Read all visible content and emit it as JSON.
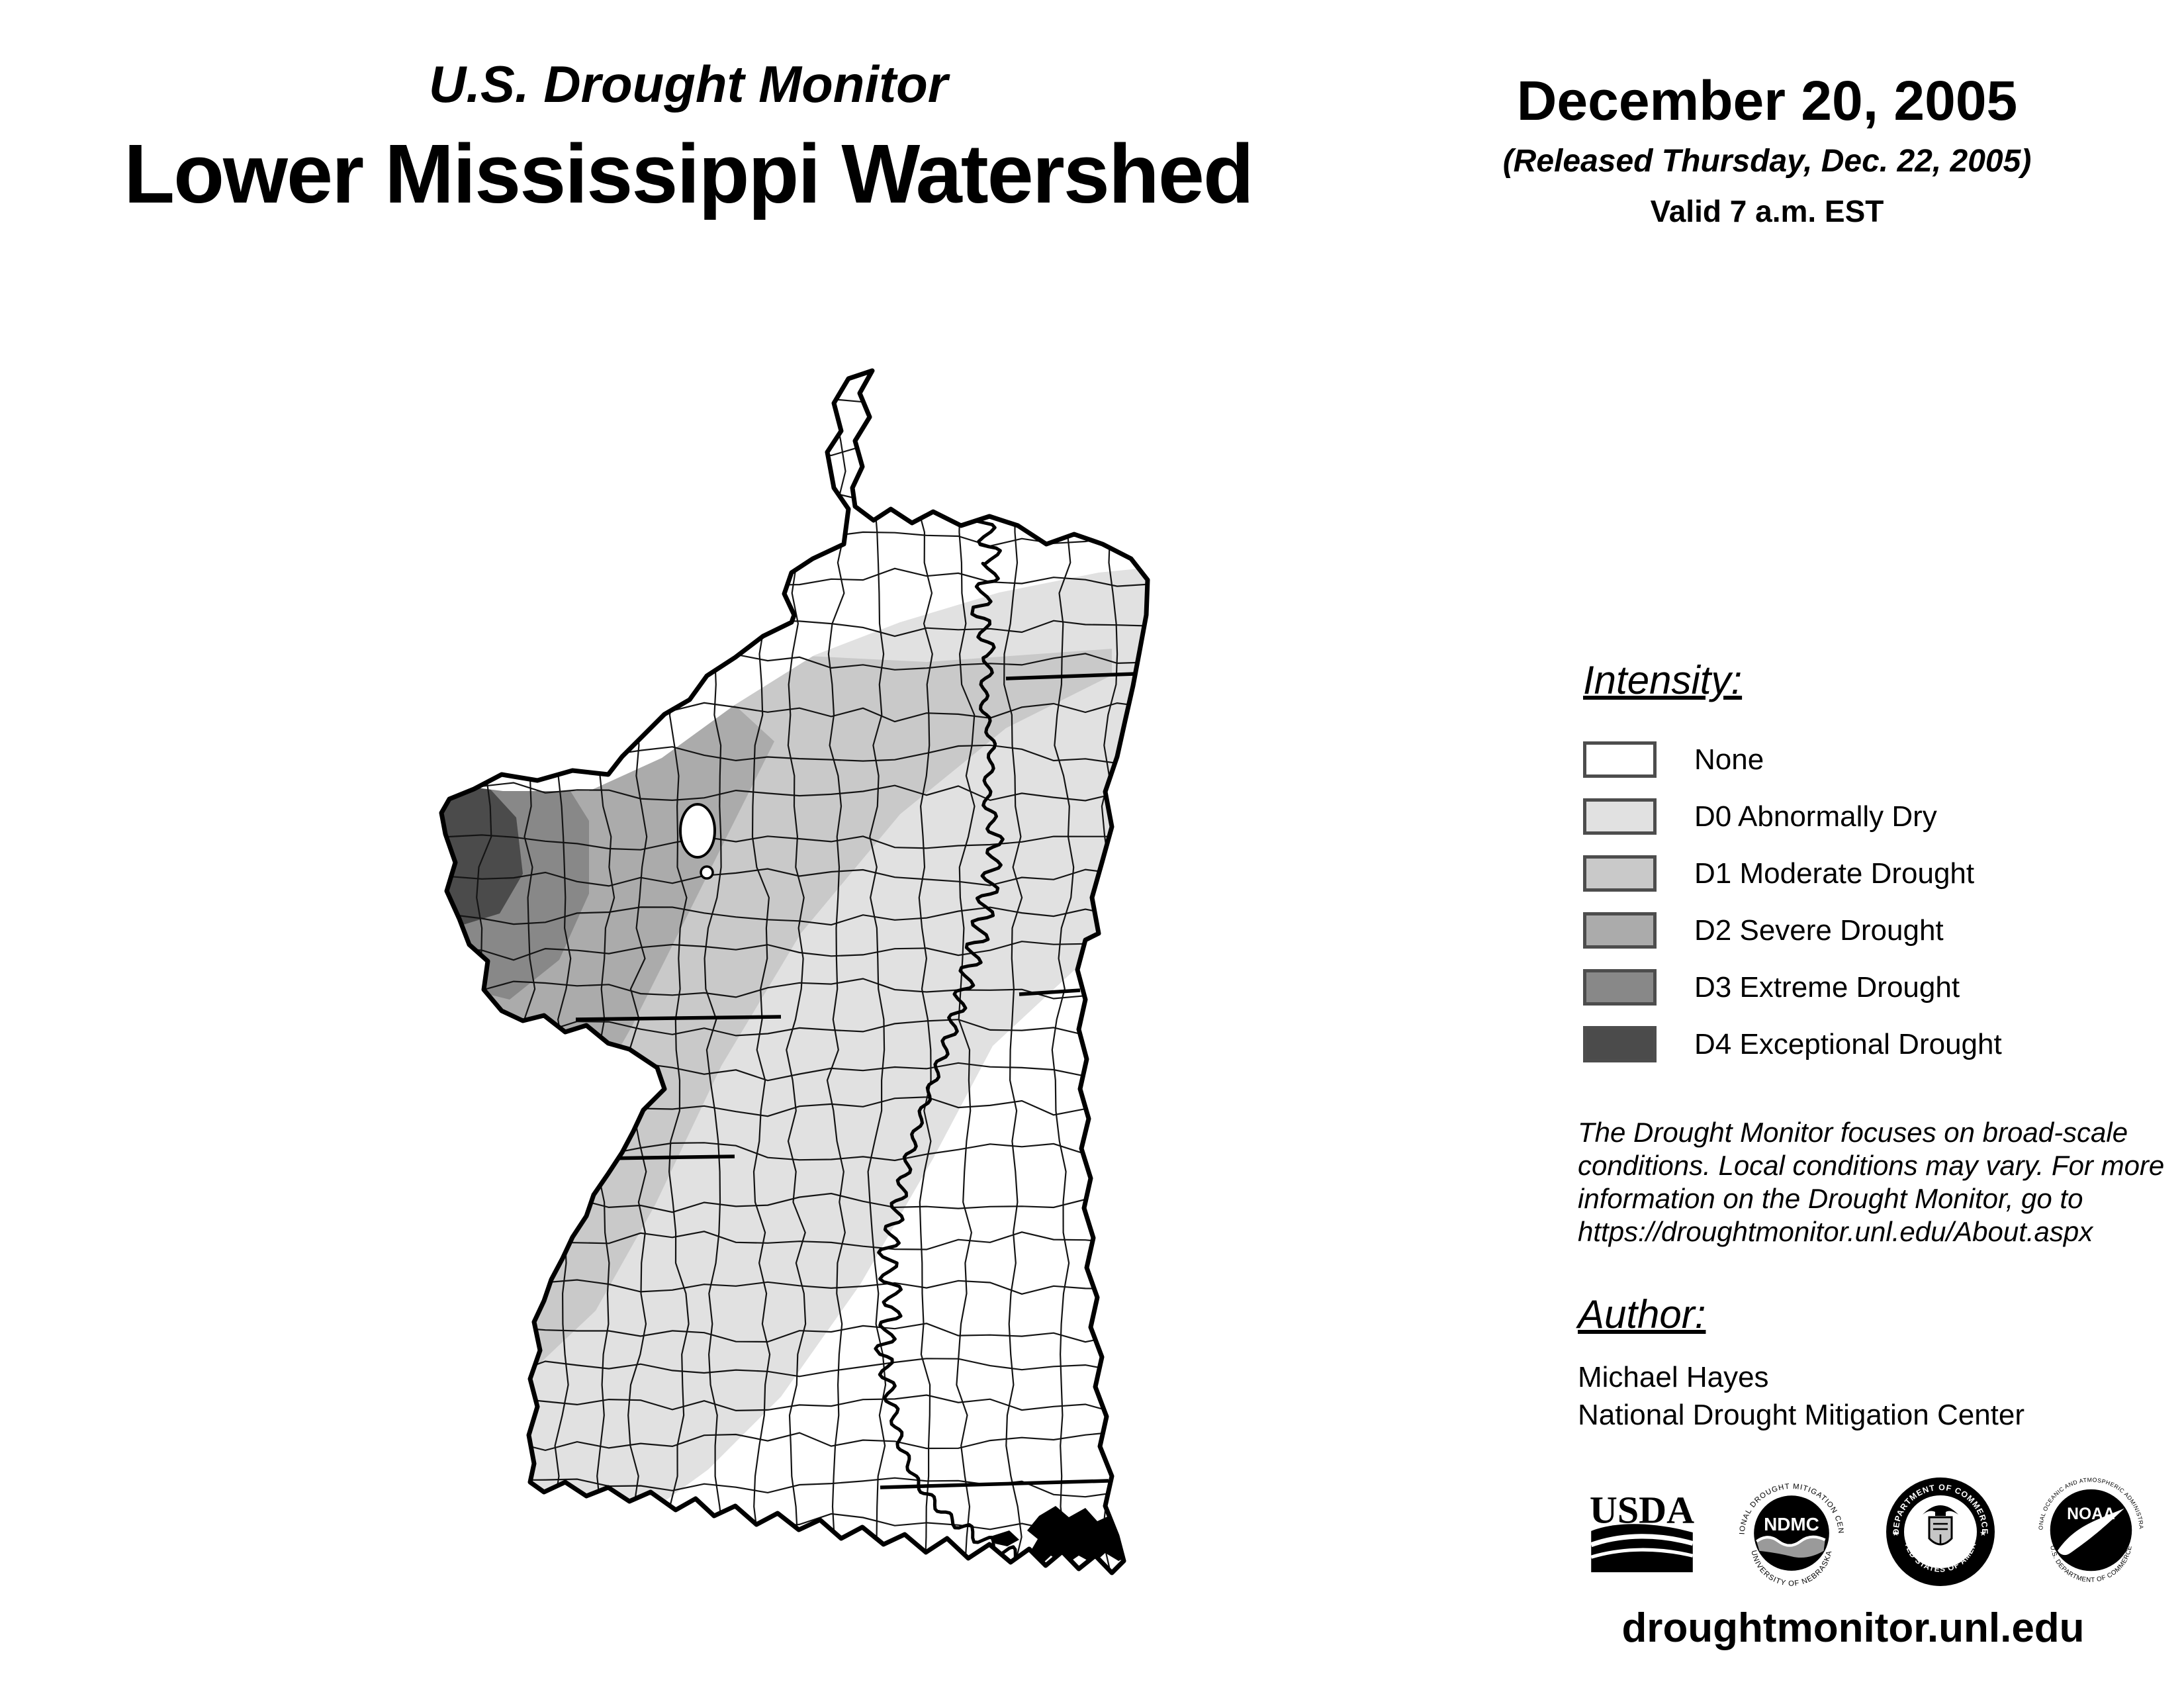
{
  "header": {
    "program_title": "U.S. Drought Monitor",
    "map_title": "Lower Mississippi Watershed"
  },
  "release": {
    "map_date": "December 20, 2005",
    "released_line": "(Released Thursday, Dec. 22, 2005)",
    "valid_line": "Valid 7 a.m. EST"
  },
  "legend": {
    "heading": "Intensity:",
    "swatch_border_color": "#4D4D4D",
    "items": [
      {
        "label": "None",
        "color": "#FFFFFF"
      },
      {
        "label": "D0 Abnormally Dry",
        "color": "#E1E1E1"
      },
      {
        "label": "D1 Moderate Drought",
        "color": "#C9C9C9"
      },
      {
        "label": "D2 Severe Drought",
        "color": "#ABABAB"
      },
      {
        "label": "D3 Extreme Drought",
        "color": "#888888"
      },
      {
        "label": "D4 Exceptional Drought",
        "color": "#4B4B4B"
      }
    ]
  },
  "disclaimer": {
    "lines": [
      "The Drought Monitor focuses on broad-scale",
      "conditions. Local conditions may vary. For more",
      "information on the Drought Monitor, go to",
      "https://droughtmonitor.unl.edu/About.aspx"
    ]
  },
  "author": {
    "heading": "Author:",
    "name": "Michael Hayes",
    "organization": "National Drought Mitigation Center"
  },
  "logos": {
    "usda": {
      "acronym": "USDA"
    },
    "ndmc": {
      "acronym": "NDMC",
      "ring_top": "NATIONAL DROUGHT MITIGATION CENTER",
      "ring_bottom": "UNIVERSITY OF NEBRASKA"
    },
    "commerce": {
      "ring_top": "DEPARTMENT OF COMMERCE",
      "ring_bottom": "UNITED STATES OF AMERICA"
    },
    "noaa": {
      "acronym": "NOAA",
      "ring_top": "NATIONAL OCEANIC AND ATMOSPHERIC ADMINISTRATION",
      "ring_bottom": "U.S. DEPARTMENT OF COMMERCE"
    }
  },
  "footer": {
    "website": "droughtmonitor.unl.edu"
  },
  "map": {
    "background": "#FFFFFF",
    "boundary_color": "#000000"
  }
}
